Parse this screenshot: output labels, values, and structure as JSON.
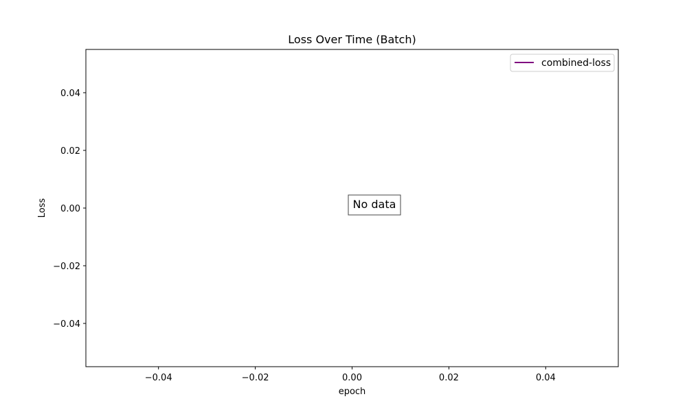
{
  "chart_data": {
    "type": "line",
    "title": "Loss Over Time (Batch)",
    "xlabel": "epoch",
    "ylabel": "Loss",
    "xlim": [
      -0.055,
      0.055
    ],
    "ylim": [
      -0.055,
      0.055
    ],
    "x_ticks": [
      -0.04,
      -0.02,
      0.0,
      0.02,
      0.04
    ],
    "y_ticks": [
      -0.04,
      -0.02,
      0.0,
      0.02,
      0.04
    ],
    "x_tick_labels": [
      "−0.04",
      "−0.02",
      "0.00",
      "0.02",
      "0.04"
    ],
    "y_tick_labels": [
      "−0.04",
      "−0.02",
      "0.00",
      "0.02",
      "0.04"
    ],
    "grid": false,
    "legend_position": "top-right",
    "series": [
      {
        "name": "combined-loss",
        "color": "#800080",
        "x": [],
        "y": []
      }
    ],
    "annotation": {
      "text": "No data",
      "x": 0.0,
      "y": 0.0
    }
  }
}
